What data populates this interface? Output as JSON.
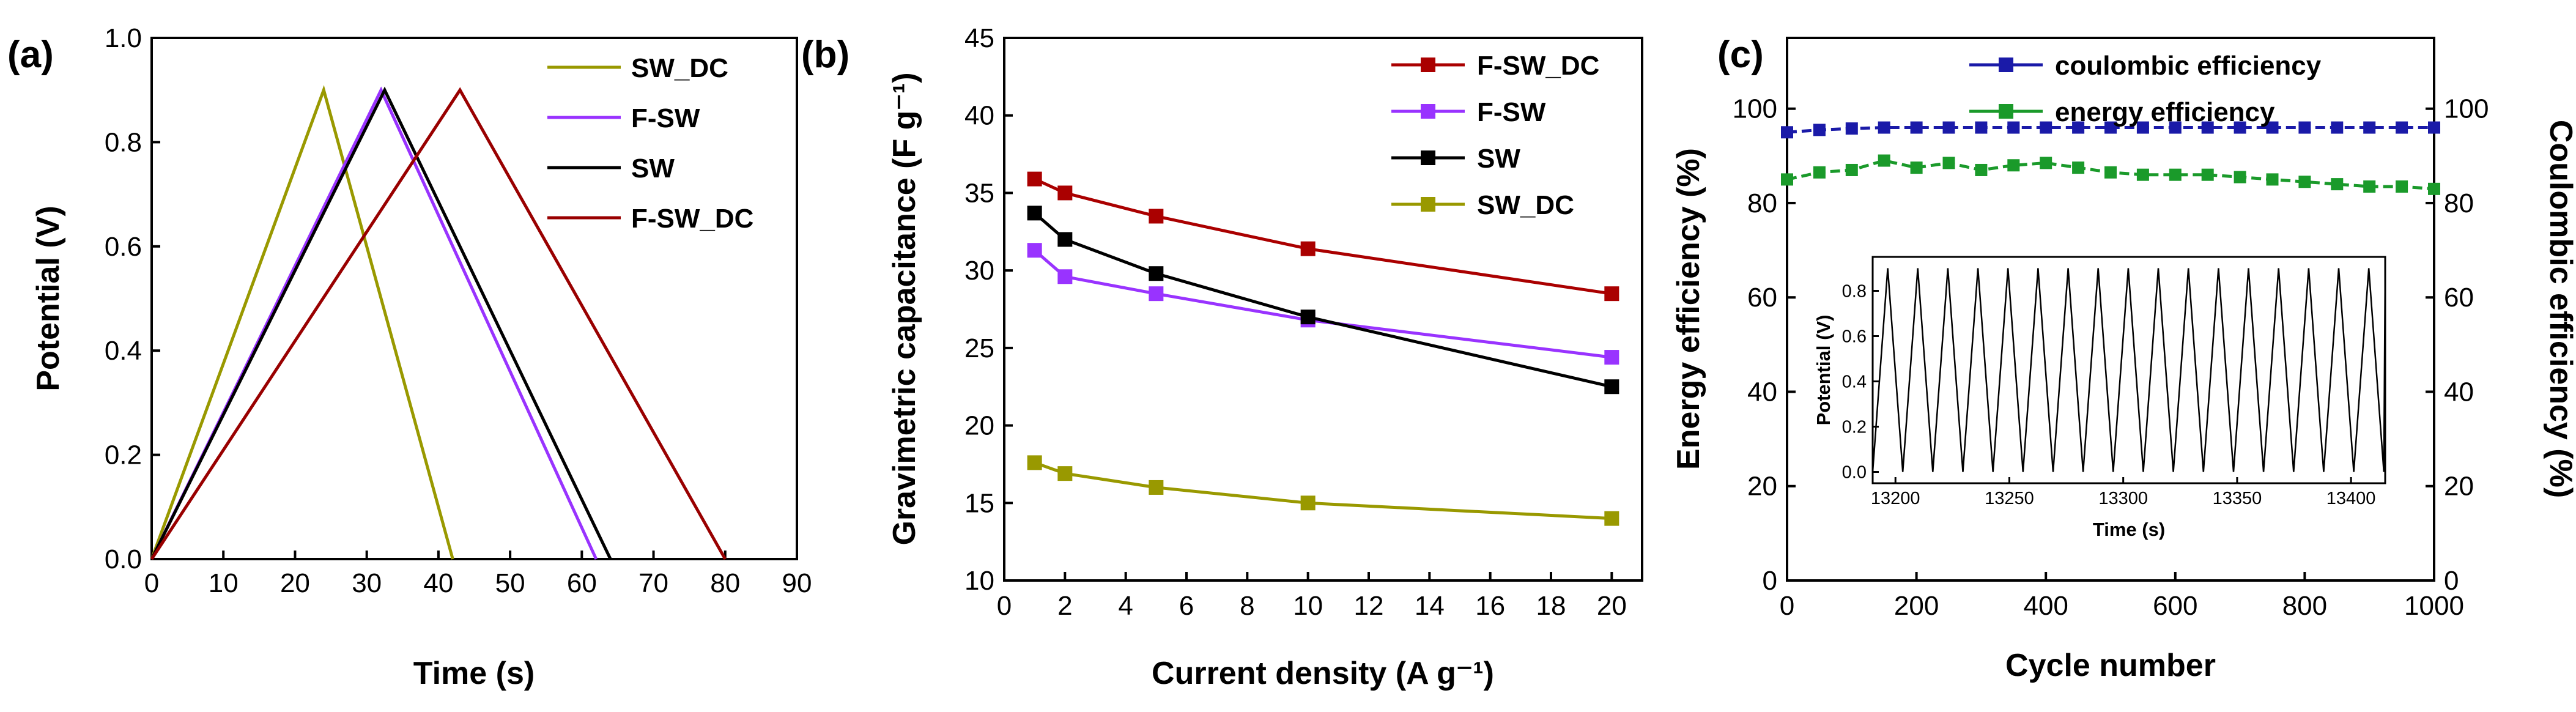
{
  "figure_size": "4212x1164",
  "chart_data": [
    {
      "panel": "(a)",
      "type": "line",
      "title": "",
      "xlabel": "Time (s)",
      "ylabel": "Potential (V)",
      "xlim": [
        0,
        90
      ],
      "ylim": [
        0,
        1.0
      ],
      "xticks": [
        0,
        10,
        20,
        30,
        40,
        50,
        60,
        70,
        80,
        90
      ],
      "yticks": [
        0.0,
        0.2,
        0.4,
        0.6,
        0.8,
        1.0
      ],
      "ytick_labels": [
        "0.0",
        "0.2",
        "0.4",
        "0.6",
        "0.8",
        "1.0"
      ],
      "legend": [
        "SW_DC",
        "F-SW",
        "SW",
        "F-SW_DC"
      ],
      "legend_position": "top-right",
      "series": [
        {
          "name": "SW_DC",
          "color": "#999900",
          "x": [
            0,
            24,
            42
          ],
          "y": [
            0.0,
            0.9,
            0.0
          ]
        },
        {
          "name": "F-SW",
          "color": "#9933ff",
          "x": [
            0,
            32,
            62
          ],
          "y": [
            0.0,
            0.9,
            0.0
          ]
        },
        {
          "name": "SW",
          "color": "#000000",
          "x": [
            0,
            32.5,
            64
          ],
          "y": [
            0.0,
            0.9,
            0.0
          ]
        },
        {
          "name": "F-SW_DC",
          "color": "#990000",
          "x": [
            0,
            43,
            80
          ],
          "y": [
            0.0,
            0.9,
            0.0
          ]
        }
      ]
    },
    {
      "panel": "(b)",
      "type": "line",
      "title": "",
      "xlabel": "Current density (A g⁻¹)",
      "ylabel": "Gravimetric capacitance (F g⁻¹)",
      "xlim": [
        0,
        21
      ],
      "ylim": [
        10,
        45
      ],
      "xticks": [
        0,
        2,
        4,
        6,
        8,
        10,
        12,
        14,
        16,
        18,
        20
      ],
      "yticks": [
        10,
        15,
        20,
        25,
        30,
        35,
        40,
        45
      ],
      "legend": [
        "F-SW_DC",
        "F-SW",
        "SW",
        "SW_DC"
      ],
      "legend_position": "top-right",
      "series": [
        {
          "name": "F-SW_DC",
          "color": "#aa0000",
          "x": [
            1,
            2,
            5,
            10,
            20
          ],
          "y": [
            35.9,
            35.0,
            33.5,
            31.4,
            28.5
          ]
        },
        {
          "name": "F-SW",
          "color": "#9933ff",
          "x": [
            1,
            2,
            5,
            10,
            20
          ],
          "y": [
            31.3,
            29.6,
            28.5,
            26.8,
            24.4
          ]
        },
        {
          "name": "SW",
          "color": "#000000",
          "x": [
            1,
            2,
            5,
            10,
            20
          ],
          "y": [
            33.7,
            32.0,
            29.8,
            27.0,
            22.5
          ]
        },
        {
          "name": "SW_DC",
          "color": "#999900",
          "x": [
            1,
            2,
            5,
            10,
            20
          ],
          "y": [
            17.6,
            16.9,
            16.0,
            15.0,
            14.0
          ]
        }
      ]
    },
    {
      "panel": "(c)",
      "type": "line",
      "title": "",
      "xlabel": "Cycle number",
      "ylabel": "Energy efficiency (%)",
      "ylabel_right": "Coulombic efficiency (%)",
      "xlim": [
        0,
        1000
      ],
      "ylim": [
        0,
        115
      ],
      "ylim_right": [
        0,
        115
      ],
      "xticks": [
        0,
        200,
        400,
        600,
        800,
        1000
      ],
      "yticks": [
        0,
        20,
        40,
        60,
        80,
        100
      ],
      "yticks_right": [
        0,
        20,
        40,
        60,
        80,
        100
      ],
      "legend": [
        "coulombic efficiency",
        "energy efficiency"
      ],
      "legend_position": "top-right",
      "series": [
        {
          "name": "coulombic efficiency",
          "color": "#1a1aa8",
          "x": [
            0,
            50,
            100,
            150,
            200,
            250,
            300,
            350,
            400,
            450,
            500,
            550,
            600,
            650,
            700,
            750,
            800,
            850,
            900,
            950,
            1000
          ],
          "y": [
            95,
            95.5,
            95.8,
            96,
            96,
            96,
            96,
            96,
            96,
            96,
            96,
            96,
            96,
            96,
            96,
            96,
            96,
            96,
            96,
            96,
            96
          ]
        },
        {
          "name": "energy efficiency",
          "color": "#1a9a2a",
          "x": [
            0,
            50,
            100,
            150,
            200,
            250,
            300,
            350,
            400,
            450,
            500,
            550,
            600,
            650,
            700,
            750,
            800,
            850,
            900,
            950,
            1000
          ],
          "y": [
            85,
            86.5,
            87,
            89,
            87.5,
            88.5,
            87,
            88,
            88.5,
            87.5,
            86.5,
            86,
            86,
            86,
            85.5,
            85,
            84.5,
            84,
            83.5,
            83.5,
            83
          ]
        }
      ],
      "inset": {
        "type": "line",
        "xlabel": "Time (s)",
        "ylabel": "Potential (V)",
        "xlim": [
          13190,
          13415
        ],
        "ylim": [
          -0.05,
          0.95
        ],
        "xticks": [
          13200,
          13250,
          13300,
          13350,
          13400
        ],
        "yticks": [
          0.0,
          0.2,
          0.4,
          0.6,
          0.8
        ],
        "ytick_labels": [
          "0.0",
          "0.2",
          "0.4",
          "0.6",
          "0.8"
        ],
        "period": 13.2,
        "t_start": 13190,
        "vmin": 0.0,
        "vmax": 0.9,
        "color": "#000000"
      }
    }
  ]
}
